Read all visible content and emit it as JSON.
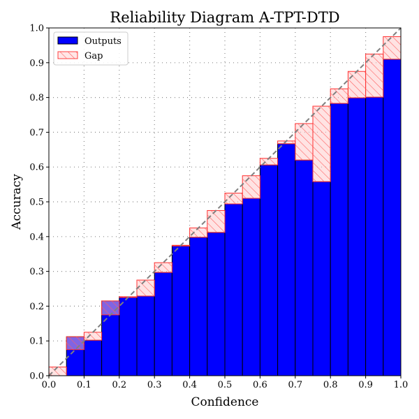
{
  "chart_data": {
    "type": "bar",
    "title": "Reliability Diagram A-TPT-DTD",
    "xlabel": "Confidence",
    "ylabel": "Accuracy",
    "xlim": [
      0,
      1
    ],
    "ylim": [
      0,
      1
    ],
    "grid": true,
    "legend_position": "top-left",
    "xticks": [
      "0.0",
      "0.1",
      "0.2",
      "0.3",
      "0.4",
      "0.5",
      "0.6",
      "0.7",
      "0.8",
      "0.9",
      "1.0"
    ],
    "yticks": [
      "0.0",
      "0.1",
      "0.2",
      "0.3",
      "0.4",
      "0.5",
      "0.6",
      "0.7",
      "0.8",
      "0.9",
      "1.0"
    ],
    "bin_width": 0.05,
    "bin_centers": [
      0.025,
      0.075,
      0.125,
      0.175,
      0.225,
      0.275,
      0.325,
      0.375,
      0.425,
      0.475,
      0.525,
      0.575,
      0.625,
      0.675,
      0.725,
      0.775,
      0.825,
      0.875,
      0.925,
      0.975
    ],
    "series": [
      {
        "name": "Outputs",
        "color": "#0000ff",
        "values": [
          0.0,
          0.112,
          0.102,
          0.215,
          0.227,
          0.229,
          0.297,
          0.373,
          0.398,
          0.412,
          0.494,
          0.51,
          0.606,
          0.667,
          0.62,
          0.558,
          0.783,
          0.799,
          0.801,
          0.91
        ]
      },
      {
        "name": "Gap",
        "color": "#ff0000"
      }
    ],
    "reference_line": {
      "from": [
        0,
        0
      ],
      "to": [
        1,
        1
      ],
      "color": "#808080",
      "style": "dashed"
    }
  }
}
